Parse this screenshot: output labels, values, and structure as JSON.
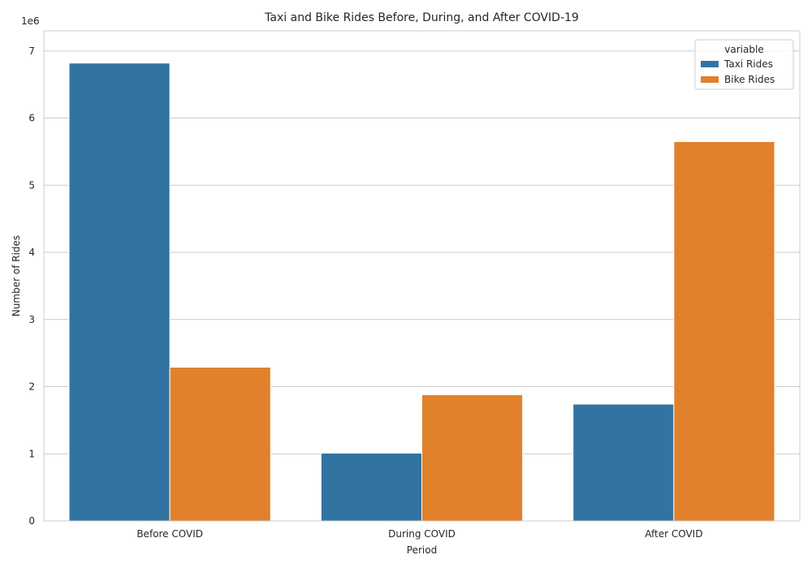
{
  "chart_data": {
    "type": "bar",
    "title": "Taxi and Bike Rides Before, During, and After COVID-19",
    "xlabel": "Period",
    "ylabel": "Number of Rides",
    "offset_label": "1e6",
    "categories": [
      "Before COVID",
      "During COVID",
      "After COVID"
    ],
    "series": [
      {
        "name": "Taxi Rides",
        "color": "#3274a1",
        "values": [
          6820000,
          1010000,
          1740000
        ]
      },
      {
        "name": "Bike Rides",
        "color": "#e1812c",
        "values": [
          2290000,
          1880000,
          5650000
        ]
      }
    ],
    "ylim": [
      0,
      7300000
    ],
    "yticks": [
      0,
      1000000,
      2000000,
      3000000,
      4000000,
      5000000,
      6000000,
      7000000
    ],
    "ytick_labels": [
      "0",
      "1",
      "2",
      "3",
      "4",
      "5",
      "6",
      "7"
    ],
    "legend": {
      "title": "variable",
      "position": "top-right"
    },
    "grid": true
  }
}
